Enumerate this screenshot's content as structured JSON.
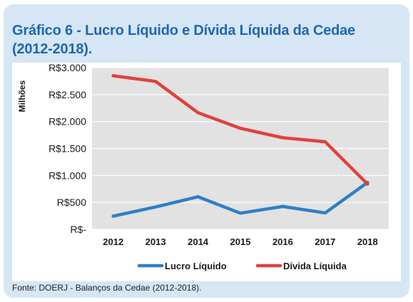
{
  "header": {
    "title_line1": "Gráfico 6 - Lucro Líquido e Dívida Líquida da Cedae",
    "title_line2": "(2012-2018)."
  },
  "footer": {
    "source": "Fonte: DOERJ - Balanços da Cedae (2012-2018)."
  },
  "colors": {
    "title": "#1f67b1",
    "card_background": "#d6e6f5",
    "plot_background": "#e2e2e2",
    "lucro": "#2e7fc5",
    "divida": "#e0413b"
  },
  "chart_data": {
    "type": "line",
    "title": "Gráfico 6 - Lucro Líquido e Dívida Líquida da Cedae (2012-2018).",
    "xlabel": "",
    "ylabel": "Milhões",
    "categories": [
      "2012",
      "2013",
      "2014",
      "2015",
      "2016",
      "2017",
      "2018"
    ],
    "ylim": [
      0,
      3000
    ],
    "yticks": [
      0,
      500,
      1000,
      1500,
      2000,
      2500,
      3000
    ],
    "ytick_labels": [
      "R$-",
      "R$500",
      "R$1.000",
      "R$1.500",
      "R$2.000",
      "R$2.500",
      "R$3.000"
    ],
    "grid": true,
    "legend_position": "bottom",
    "series": [
      {
        "name": "Lucro Líquido",
        "color": "#2e7fc5",
        "values": [
          245,
          415,
          605,
          300,
          425,
          305,
          870
        ]
      },
      {
        "name": "Dívida Líquida",
        "color": "#e0413b",
        "values": [
          2850,
          2745,
          2165,
          1875,
          1700,
          1625,
          840
        ]
      }
    ]
  }
}
